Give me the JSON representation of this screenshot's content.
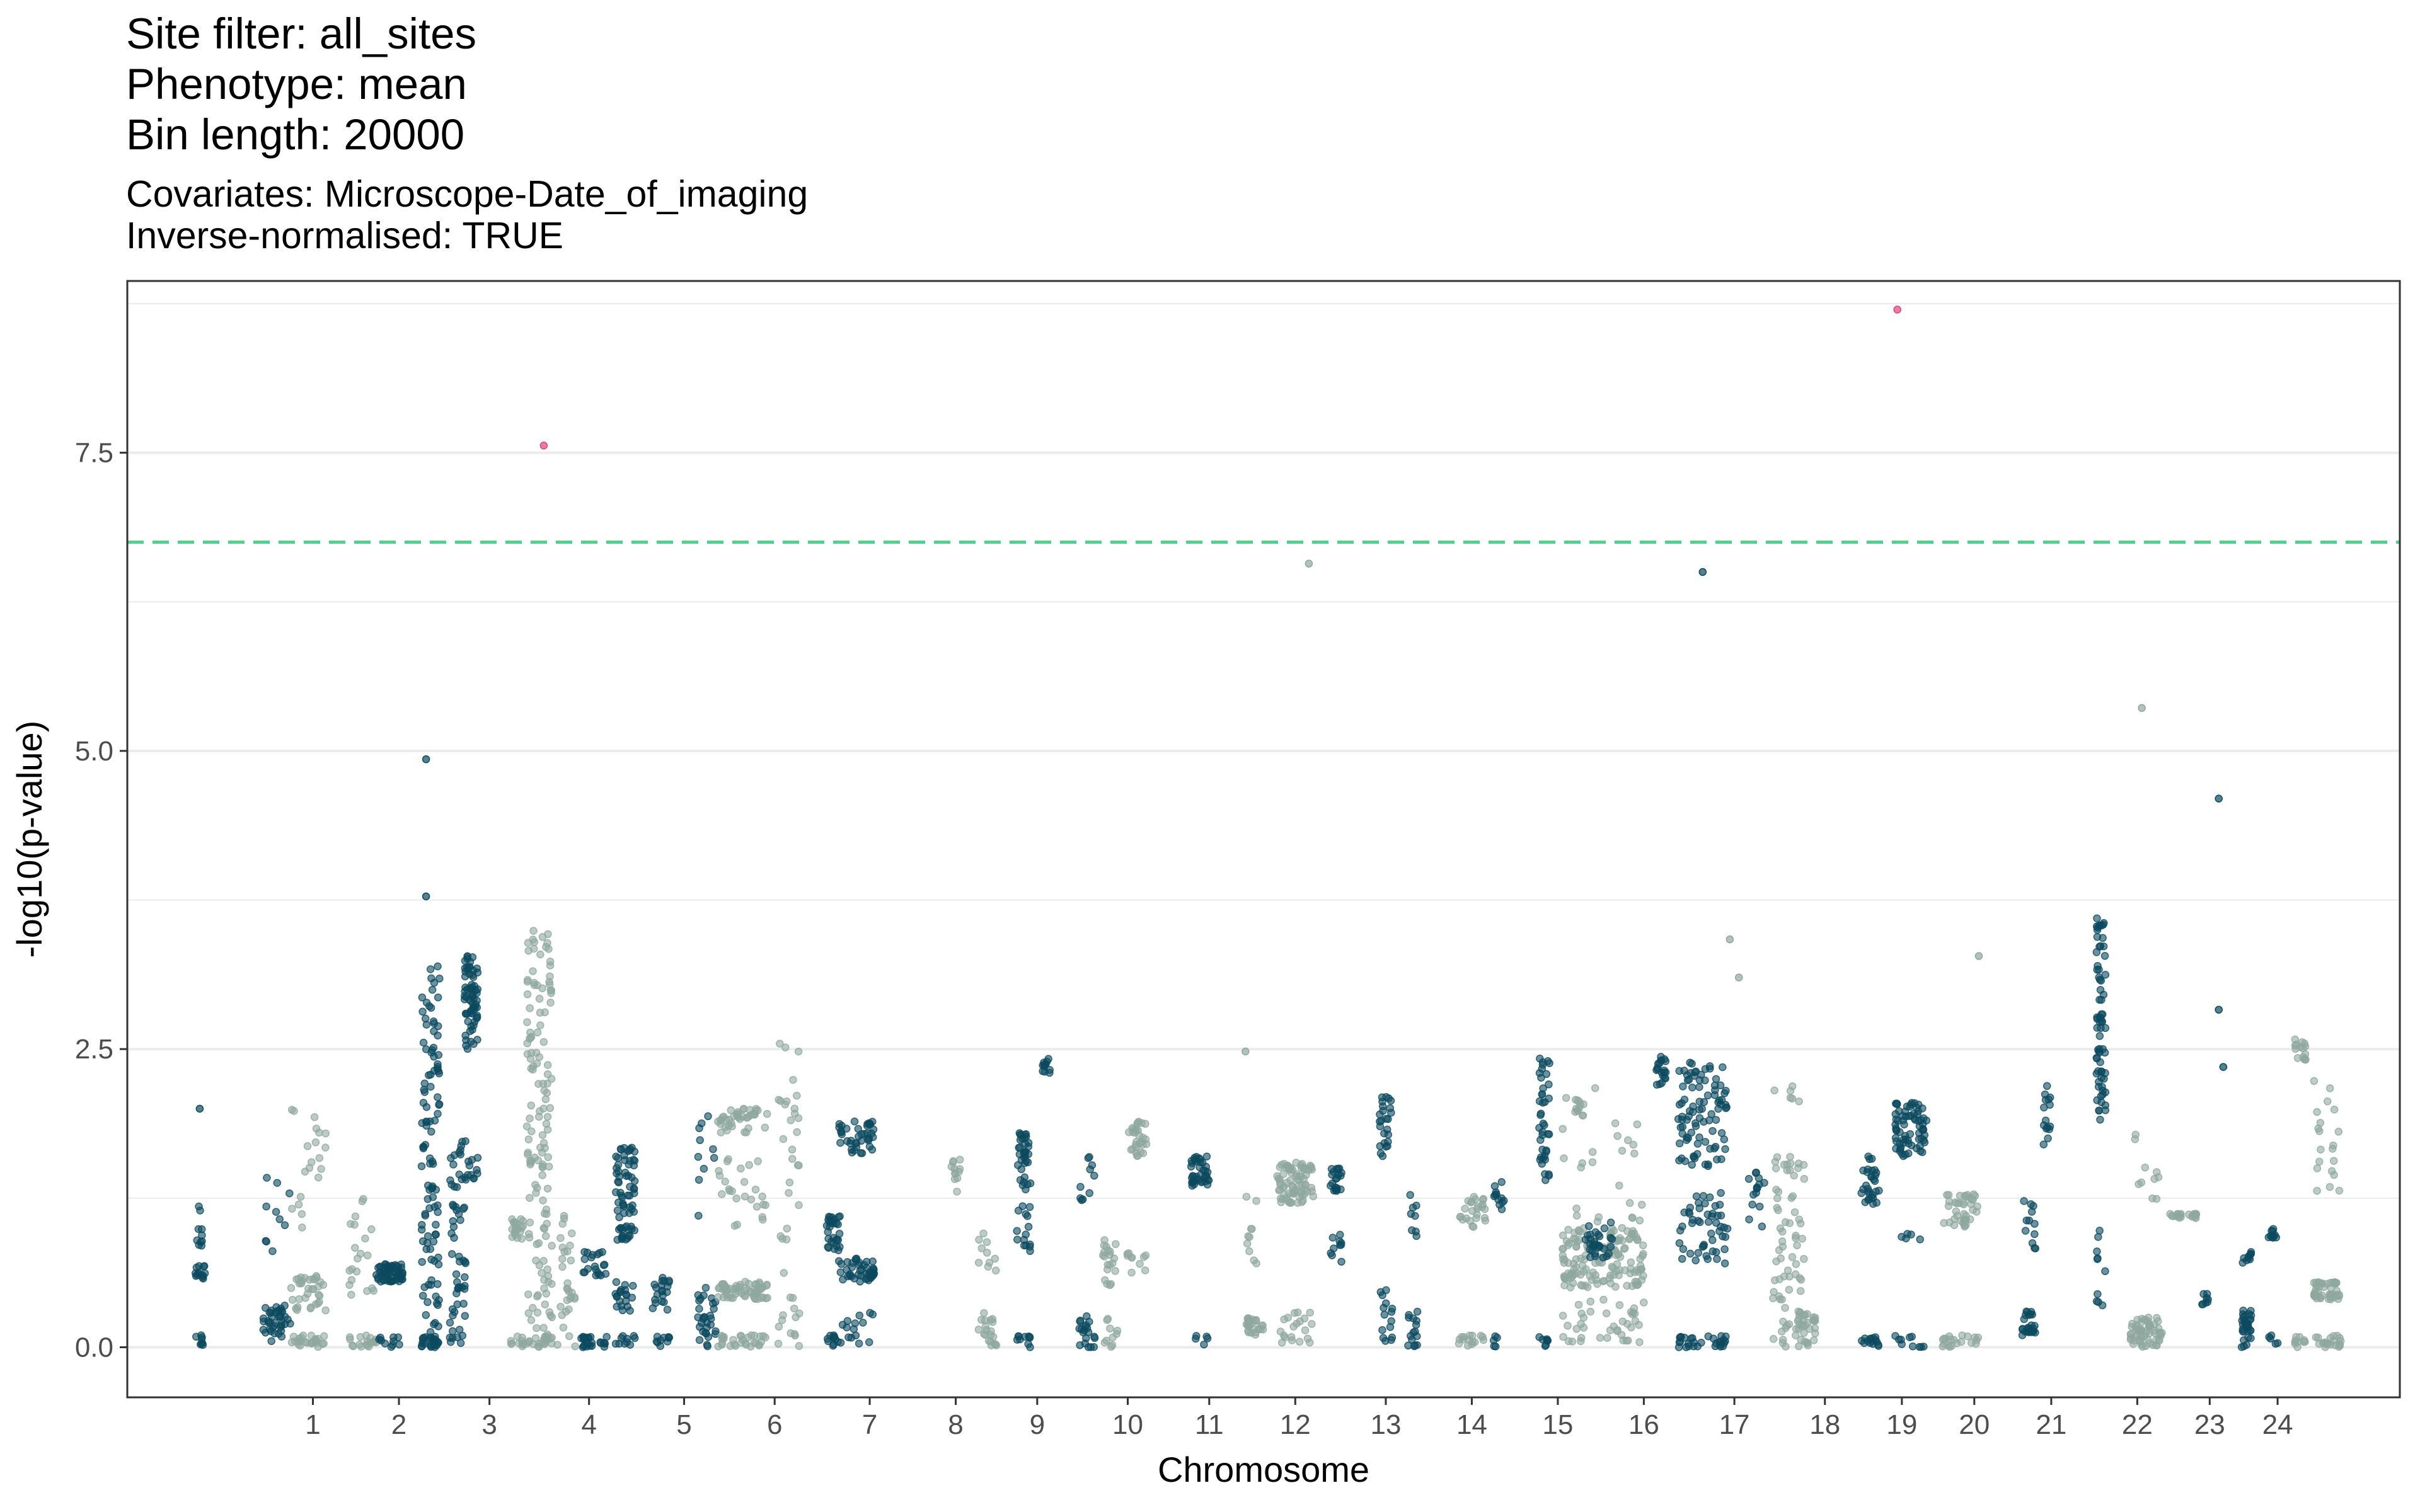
{
  "title_lines": [
    "Site filter: all_sites",
    "Phenotype: mean",
    "Bin length: 20000"
  ],
  "subtitle_lines": [
    "Covariates: Microscope-Date_of_imaging",
    "Inverse-normalised: TRUE"
  ],
  "colors": {
    "dark": "#0b4a5f",
    "light": "#8fa89f",
    "significant": "#e0457b",
    "threshold": "#4fd18b",
    "grid": "#ebebeb",
    "panel_border": "#333333"
  },
  "chart_data": {
    "type": "scatter",
    "xlabel": "Chromosome",
    "ylabel": "-log10(p-value)",
    "ylim": [
      -0.42,
      8.94
    ],
    "y_ticks": [
      "0.0",
      "2.5",
      "5.0",
      "7.5"
    ],
    "grid": true,
    "threshold_y": 6.75,
    "chromosomes": [
      "1",
      "2",
      "3",
      "4",
      "5",
      "6",
      "7",
      "8",
      "9",
      "10",
      "11",
      "12",
      "13",
      "14",
      "15",
      "16",
      "17",
      "18",
      "19",
      "20",
      "21",
      "22",
      "23",
      "24"
    ],
    "chromosome_tick_positions": [
      0.75,
      1.7,
      2.7,
      3.8,
      4.85,
      5.85,
      6.9,
      7.85,
      8.75,
      9.75,
      10.65,
      11.6,
      12.6,
      13.55,
      14.5,
      15.45,
      16.45,
      17.45,
      18.3,
      19.1,
      19.95,
      20.9,
      21.7,
      22.45
    ],
    "xlim": [
      -1.3,
      23.8
    ],
    "clusters": [
      {
        "x": -0.5,
        "w": 0.12,
        "color": "dark",
        "segments": [
          [
            0.0,
            0.1,
            8
          ],
          [
            0.55,
            0.7,
            14
          ],
          [
            0.85,
            1.2,
            10
          ]
        ]
      },
      {
        "x": 0.35,
        "w": 0.3,
        "color": "dark",
        "segments": [
          [
            0.05,
            0.35,
            40
          ],
          [
            0.8,
            1.5,
            10
          ]
        ]
      },
      {
        "x": 0.7,
        "w": 0.4,
        "color": "light",
        "segments": [
          [
            0.0,
            0.1,
            25
          ],
          [
            0.3,
            0.6,
            35
          ],
          [
            1.0,
            2.0,
            20
          ]
        ]
      },
      {
        "x": 1.3,
        "w": 0.3,
        "color": "light",
        "segments": [
          [
            0.0,
            0.1,
            18
          ],
          [
            0.4,
            1.3,
            20
          ]
        ]
      },
      {
        "x": 1.6,
        "w": 0.3,
        "color": "dark",
        "segments": [
          [
            0.55,
            0.7,
            60
          ],
          [
            0.0,
            0.1,
            10
          ]
        ]
      },
      {
        "x": 2.05,
        "w": 0.2,
        "color": "dark",
        "segments": [
          [
            0.0,
            3.2,
            110
          ],
          [
            0.0,
            0.1,
            20
          ]
        ]
      },
      {
        "x": 2.35,
        "w": 0.18,
        "color": "dark",
        "segments": [
          [
            0.0,
            1.8,
            60
          ]
        ]
      },
      {
        "x": 2.5,
        "w": 0.15,
        "color": "dark",
        "segments": [
          [
            2.5,
            3.3,
            70
          ],
          [
            1.4,
            1.6,
            10
          ]
        ]
      },
      {
        "x": 3.0,
        "w": 0.15,
        "color": "light",
        "segments": [
          [
            0.9,
            1.1,
            20
          ],
          [
            0.0,
            0.1,
            10
          ]
        ]
      },
      {
        "x": 3.25,
        "w": 0.28,
        "color": "light",
        "segments": [
          [
            1.5,
            3.5,
            90
          ],
          [
            0.0,
            1.5,
            50
          ],
          [
            0.0,
            0.1,
            15
          ]
        ]
      },
      {
        "x": 3.55,
        "w": 0.2,
        "color": "light",
        "segments": [
          [
            0.0,
            1.2,
            30
          ]
        ]
      },
      {
        "x": 3.85,
        "w": 0.3,
        "color": "dark",
        "segments": [
          [
            0.0,
            0.1,
            25
          ],
          [
            0.6,
            0.8,
            20
          ]
        ]
      },
      {
        "x": 4.2,
        "w": 0.22,
        "color": "dark",
        "segments": [
          [
            0.9,
            1.7,
            70
          ],
          [
            0.3,
            0.55,
            20
          ],
          [
            0.0,
            0.1,
            10
          ]
        ]
      },
      {
        "x": 4.6,
        "w": 0.2,
        "color": "dark",
        "segments": [
          [
            0.3,
            0.6,
            20
          ],
          [
            0.0,
            0.1,
            10
          ]
        ]
      },
      {
        "x": 5.1,
        "w": 0.2,
        "color": "dark",
        "segments": [
          [
            0.0,
            0.5,
            30
          ],
          [
            0.9,
            2.0,
            10
          ]
        ]
      },
      {
        "x": 5.5,
        "w": 0.55,
        "color": "light",
        "segments": [
          [
            0.4,
            0.55,
            60
          ],
          [
            1.8,
            2.0,
            40
          ],
          [
            0.0,
            0.1,
            30
          ],
          [
            1.0,
            1.6,
            25
          ]
        ]
      },
      {
        "x": 6.0,
        "w": 0.25,
        "color": "light",
        "segments": [
          [
            0.0,
            2.6,
            40
          ]
        ]
      },
      {
        "x": 6.5,
        "w": 0.15,
        "color": "dark",
        "segments": [
          [
            0.8,
            1.1,
            30
          ],
          [
            0.0,
            0.1,
            10
          ]
        ]
      },
      {
        "x": 6.75,
        "w": 0.4,
        "color": "dark",
        "segments": [
          [
            0.55,
            0.75,
            45
          ],
          [
            1.6,
            1.9,
            40
          ],
          [
            0.0,
            0.3,
            15
          ]
        ]
      },
      {
        "x": 7.85,
        "w": 0.1,
        "color": "light",
        "segments": [
          [
            1.3,
            1.6,
            12
          ]
        ]
      },
      {
        "x": 8.2,
        "w": 0.2,
        "color": "light",
        "segments": [
          [
            0.0,
            0.3,
            20
          ],
          [
            0.6,
            1.0,
            10
          ]
        ]
      },
      {
        "x": 8.6,
        "w": 0.15,
        "color": "dark",
        "segments": [
          [
            0.0,
            0.1,
            10
          ],
          [
            0.8,
            1.2,
            15
          ],
          [
            1.3,
            1.8,
            35
          ]
        ]
      },
      {
        "x": 8.85,
        "w": 0.08,
        "color": "dark",
        "segments": [
          [
            2.3,
            2.45,
            12
          ]
        ]
      },
      {
        "x": 9.3,
        "w": 0.18,
        "color": "dark",
        "segments": [
          [
            0.0,
            0.3,
            20
          ],
          [
            1.0,
            1.6,
            10
          ]
        ]
      },
      {
        "x": 9.55,
        "w": 0.18,
        "color": "light",
        "segments": [
          [
            0.5,
            0.9,
            20
          ],
          [
            0.0,
            0.3,
            10
          ]
        ]
      },
      {
        "x": 9.85,
        "w": 0.22,
        "color": "light",
        "segments": [
          [
            1.6,
            1.9,
            30
          ],
          [
            0.6,
            0.8,
            10
          ]
        ]
      },
      {
        "x": 10.55,
        "w": 0.2,
        "color": "dark",
        "segments": [
          [
            1.35,
            1.6,
            40
          ],
          [
            0.0,
            0.1,
            5
          ]
        ]
      },
      {
        "x": 11.15,
        "w": 0.2,
        "color": "light",
        "segments": [
          [
            0.1,
            0.25,
            25
          ],
          [
            0.7,
            1.3,
            10
          ]
        ]
      },
      {
        "x": 11.6,
        "w": 0.4,
        "color": "light",
        "segments": [
          [
            1.2,
            1.55,
            80
          ],
          [
            0.0,
            0.3,
            20
          ]
        ]
      },
      {
        "x": 12.05,
        "w": 0.12,
        "color": "dark",
        "segments": [
          [
            1.3,
            1.5,
            20
          ],
          [
            0.7,
            1.0,
            10
          ]
        ]
      },
      {
        "x": 12.6,
        "w": 0.15,
        "color": "dark",
        "segments": [
          [
            1.6,
            2.1,
            25
          ],
          [
            0.0,
            0.5,
            15
          ]
        ]
      },
      {
        "x": 12.9,
        "w": 0.12,
        "color": "dark",
        "segments": [
          [
            0.0,
            0.3,
            15
          ],
          [
            0.9,
            1.3,
            8
          ]
        ]
      },
      {
        "x": 13.55,
        "w": 0.3,
        "color": "light",
        "segments": [
          [
            1.0,
            1.3,
            25
          ],
          [
            0.0,
            0.1,
            15
          ]
        ]
      },
      {
        "x": 13.85,
        "w": 0.12,
        "color": "dark",
        "segments": [
          [
            1.1,
            1.4,
            12
          ],
          [
            0.0,
            0.1,
            5
          ]
        ]
      },
      {
        "x": 14.35,
        "w": 0.12,
        "color": "dark",
        "segments": [
          [
            1.4,
            2.45,
            40
          ],
          [
            0.0,
            0.1,
            8
          ]
        ]
      },
      {
        "x": 14.75,
        "w": 0.12,
        "color": "light",
        "segments": [
          [
            1.9,
            2.1,
            12
          ]
        ]
      },
      {
        "x": 15.0,
        "w": 0.9,
        "color": "light",
        "segments": [
          [
            0.5,
            1.0,
            150
          ],
          [
            0.0,
            0.4,
            40
          ],
          [
            1.0,
            2.2,
            25
          ]
        ]
      },
      {
        "x": 14.95,
        "w": 0.3,
        "color": "dark",
        "segments": [
          [
            0.75,
            1.05,
            30
          ]
        ]
      },
      {
        "x": 15.65,
        "w": 0.12,
        "color": "dark",
        "segments": [
          [
            2.2,
            2.45,
            20
          ]
        ]
      },
      {
        "x": 16.1,
        "w": 0.55,
        "color": "dark",
        "segments": [
          [
            1.5,
            2.4,
            90
          ],
          [
            0.7,
            1.3,
            50
          ],
          [
            0.0,
            0.1,
            30
          ]
        ]
      },
      {
        "x": 16.7,
        "w": 0.2,
        "color": "dark",
        "segments": [
          [
            1.0,
            1.5,
            15
          ]
        ]
      },
      {
        "x": 17.05,
        "w": 0.35,
        "color": "light",
        "segments": [
          [
            0.0,
            1.6,
            70
          ],
          [
            2.0,
            2.2,
            6
          ]
        ]
      },
      {
        "x": 17.25,
        "w": 0.2,
        "color": "light",
        "segments": [
          [
            0.0,
            0.3,
            30
          ]
        ]
      },
      {
        "x": 17.95,
        "w": 0.2,
        "color": "dark",
        "segments": [
          [
            1.2,
            1.6,
            30
          ],
          [
            0.0,
            0.1,
            15
          ]
        ]
      },
      {
        "x": 18.4,
        "w": 0.35,
        "color": "dark",
        "segments": [
          [
            1.6,
            2.05,
            70
          ],
          [
            0.9,
            1.0,
            5
          ],
          [
            0.0,
            0.1,
            10
          ]
        ]
      },
      {
        "x": 18.95,
        "w": 0.4,
        "color": "light",
        "segments": [
          [
            1.0,
            1.3,
            40
          ],
          [
            0.0,
            0.1,
            20
          ]
        ]
      },
      {
        "x": 19.7,
        "w": 0.15,
        "color": "dark",
        "segments": [
          [
            0.1,
            0.3,
            25
          ],
          [
            0.8,
            1.4,
            12
          ]
        ]
      },
      {
        "x": 19.9,
        "w": 0.08,
        "color": "dark",
        "segments": [
          [
            1.7,
            2.2,
            15
          ]
        ]
      },
      {
        "x": 20.5,
        "w": 0.1,
        "color": "dark",
        "segments": [
          [
            1.9,
            3.6,
            70
          ],
          [
            0.3,
            1.1,
            10
          ]
        ]
      },
      {
        "x": 21.0,
        "w": 0.35,
        "color": "light",
        "segments": [
          [
            0.0,
            0.25,
            60
          ],
          [
            1.0,
            1.8,
            10
          ]
        ]
      },
      {
        "x": 21.4,
        "w": 0.35,
        "color": "light",
        "segments": [
          [
            1.08,
            1.12,
            20
          ]
        ]
      },
      {
        "x": 21.65,
        "w": 0.08,
        "color": "dark",
        "segments": [
          [
            0.35,
            0.45,
            8
          ]
        ]
      },
      {
        "x": 22.1,
        "w": 0.12,
        "color": "dark",
        "segments": [
          [
            0.0,
            0.35,
            30
          ],
          [
            0.7,
            0.8,
            10
          ]
        ]
      },
      {
        "x": 22.4,
        "w": 0.12,
        "color": "dark",
        "segments": [
          [
            0.9,
            1.0,
            10
          ],
          [
            0.0,
            0.1,
            5
          ]
        ]
      },
      {
        "x": 22.7,
        "w": 0.12,
        "color": "light",
        "segments": [
          [
            2.4,
            2.6,
            15
          ],
          [
            0.0,
            0.1,
            10
          ]
        ]
      },
      {
        "x": 23.0,
        "w": 0.3,
        "color": "light",
        "segments": [
          [
            0.4,
            0.55,
            45
          ],
          [
            0.0,
            0.1,
            20
          ],
          [
            1.3,
            2.3,
            20
          ]
        ]
      }
    ],
    "outliers": [
      {
        "x": -0.5,
        "y": 2.0,
        "color": "dark"
      },
      {
        "x": 2.0,
        "y": 4.93,
        "color": "dark"
      },
      {
        "x": 2.0,
        "y": 3.78,
        "color": "dark"
      },
      {
        "x": 3.3,
        "y": 7.56,
        "color": "significant"
      },
      {
        "x": 11.05,
        "y": 2.48,
        "color": "light"
      },
      {
        "x": 11.75,
        "y": 6.57,
        "color": "light"
      },
      {
        "x": 16.1,
        "y": 6.5,
        "color": "dark"
      },
      {
        "x": 16.4,
        "y": 3.42,
        "color": "light"
      },
      {
        "x": 16.5,
        "y": 3.1,
        "color": "light"
      },
      {
        "x": 18.25,
        "y": 8.7,
        "color": "significant"
      },
      {
        "x": 19.15,
        "y": 3.28,
        "color": "light"
      },
      {
        "x": 20.95,
        "y": 5.36,
        "color": "light"
      },
      {
        "x": 21.8,
        "y": 4.6,
        "color": "dark"
      },
      {
        "x": 21.8,
        "y": 2.83,
        "color": "dark"
      },
      {
        "x": 21.85,
        "y": 2.35,
        "color": "dark"
      }
    ]
  }
}
